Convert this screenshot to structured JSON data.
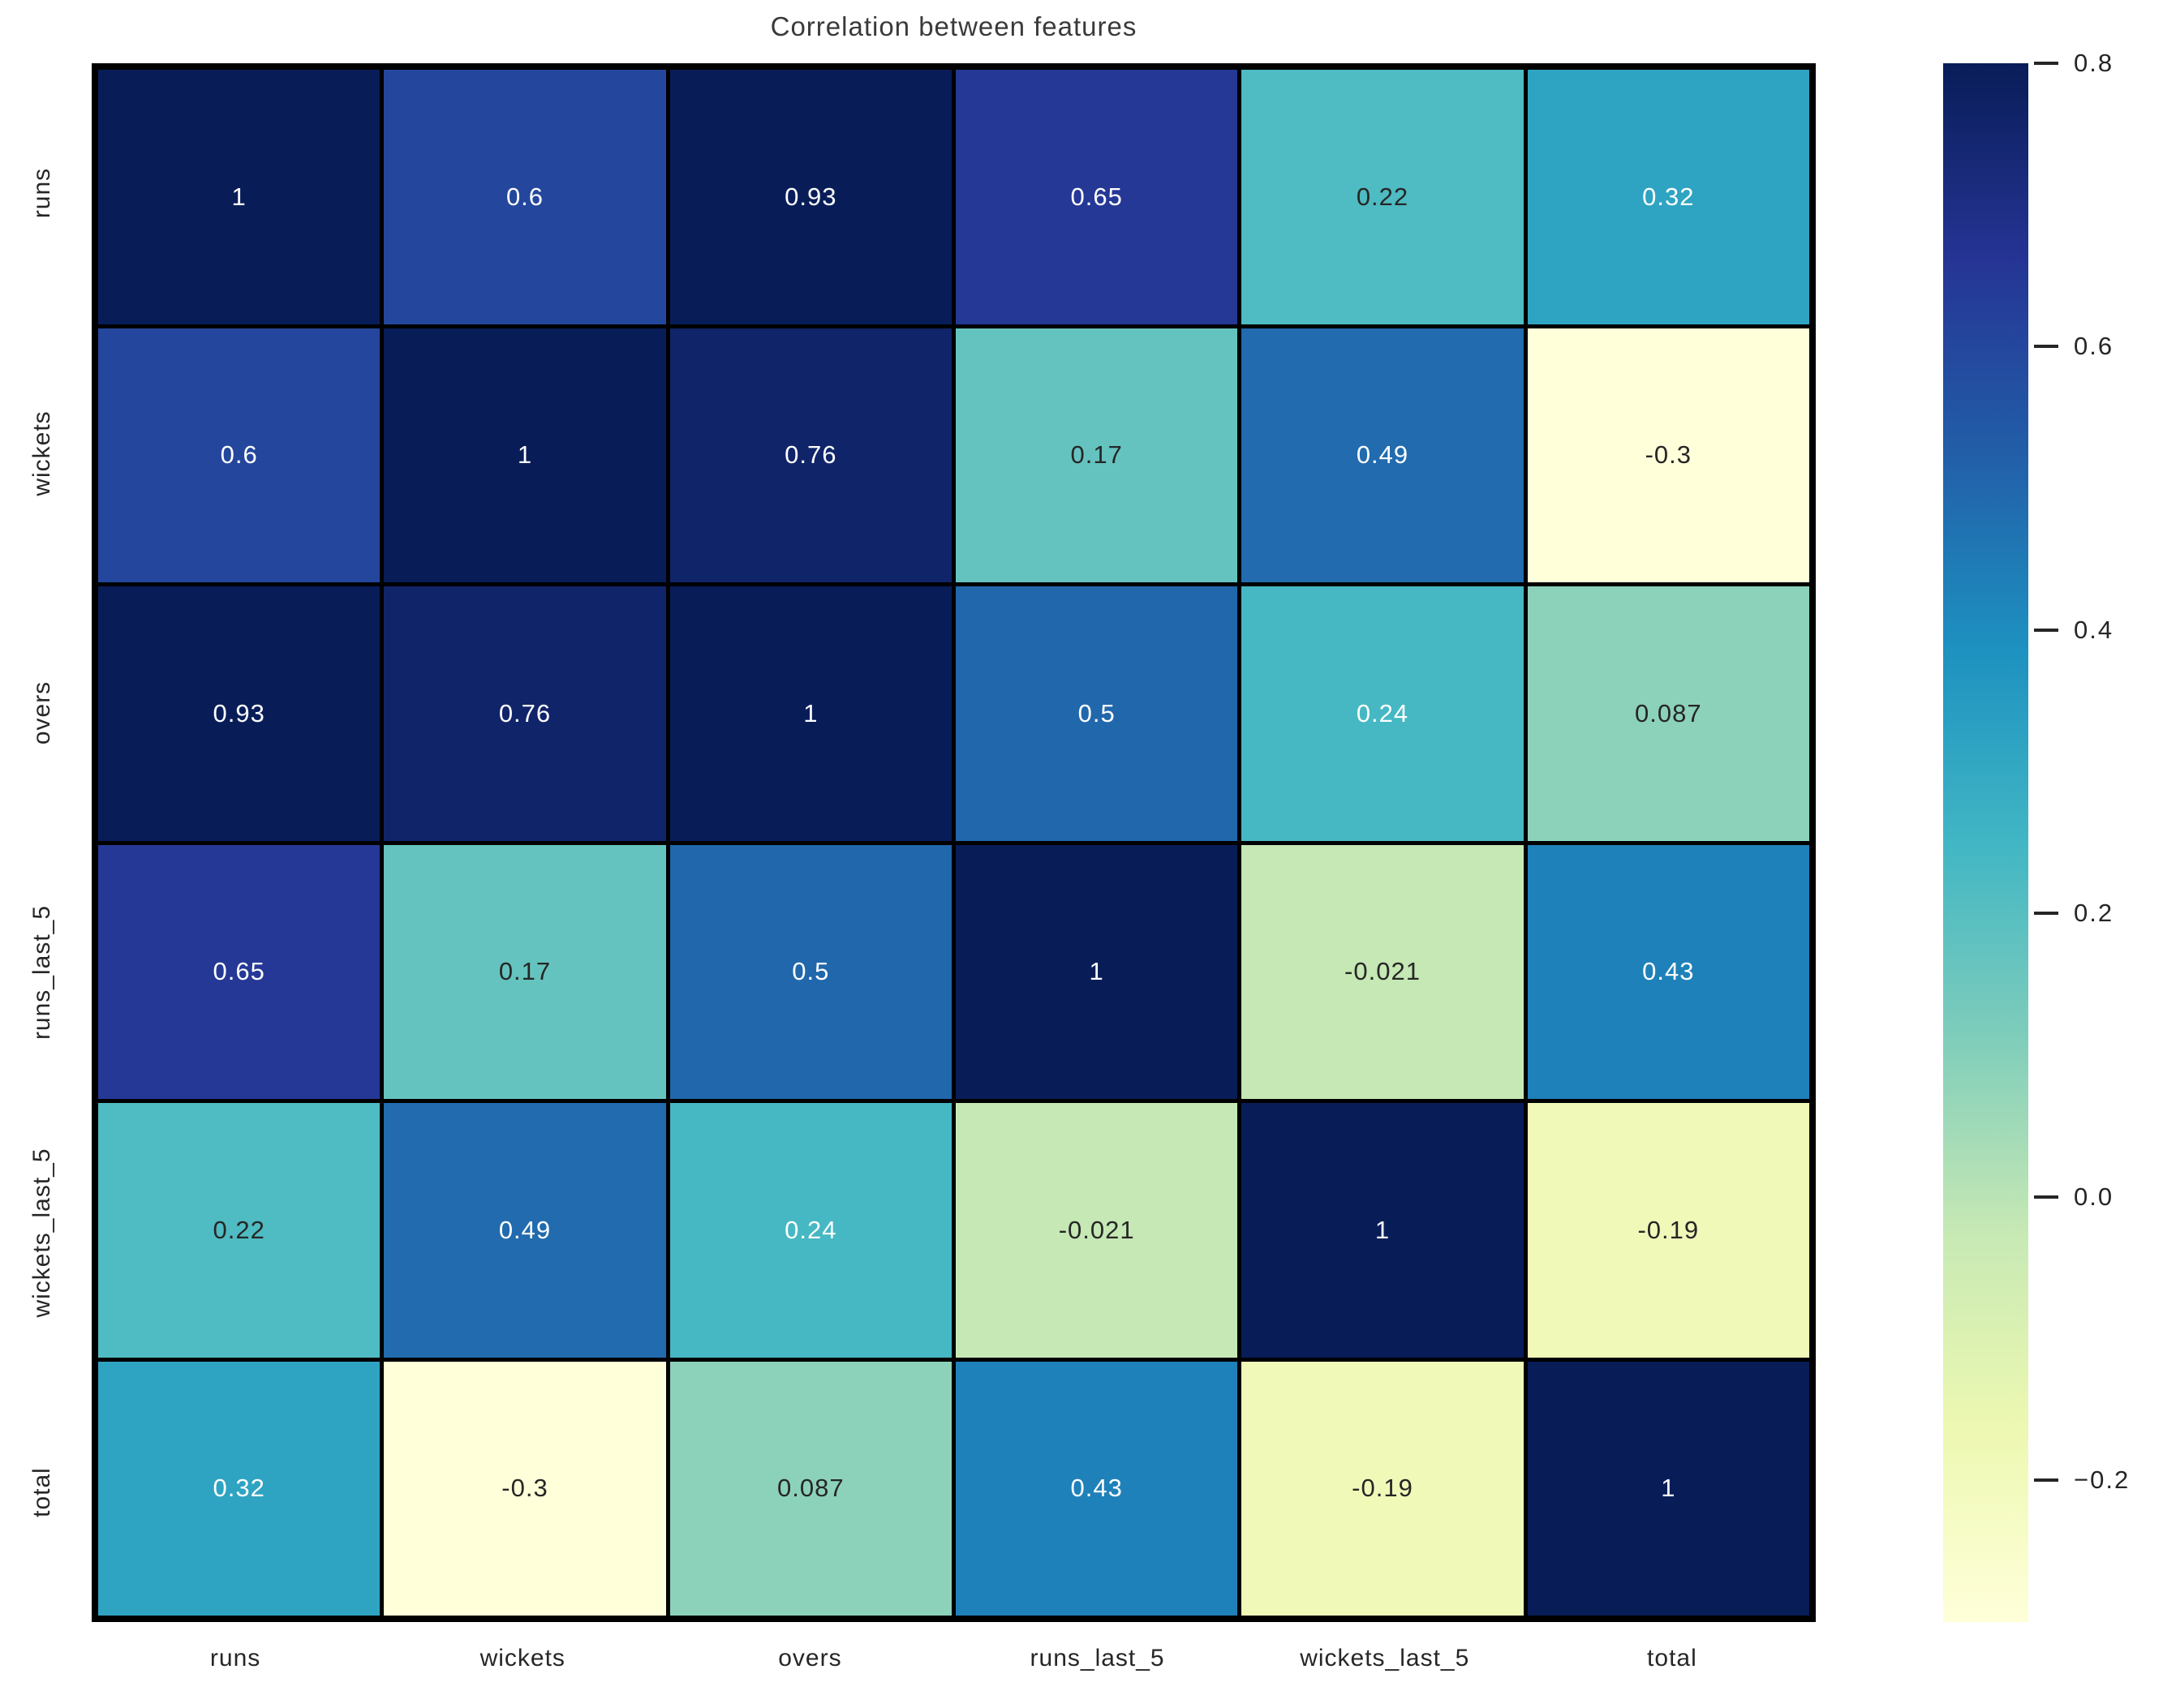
{
  "title": "Correlation between features",
  "chart_data": {
    "type": "heatmap",
    "title": "Correlation between features",
    "x_labels": [
      "runs",
      "wickets",
      "overs",
      "runs_last_5",
      "wickets_last_5",
      "total"
    ],
    "y_labels": [
      "runs",
      "wickets",
      "overs",
      "runs_last_5",
      "wickets_last_5",
      "total"
    ],
    "matrix": [
      [
        1,
        0.6,
        0.93,
        0.65,
        0.22,
        0.32
      ],
      [
        0.6,
        1,
        0.76,
        0.17,
        0.49,
        -0.3
      ],
      [
        0.93,
        0.76,
        1,
        0.5,
        0.24,
        0.087
      ],
      [
        0.65,
        0.17,
        0.5,
        1,
        -0.021,
        0.43
      ],
      [
        0.22,
        0.49,
        0.24,
        -0.021,
        1,
        -0.19
      ],
      [
        0.32,
        -0.3,
        0.087,
        0.43,
        -0.19,
        1
      ]
    ],
    "vmin": -0.3,
    "vmax": 0.8,
    "colormap": {
      "name": "YlGnBu",
      "anchors": [
        "#ffffd9",
        "#edf8b1",
        "#c7e9b4",
        "#7fcdbb",
        "#41b6c4",
        "#1d91c0",
        "#225ea8",
        "#253494",
        "#081d58"
      ]
    },
    "colorbar_tick_values": [
      0.8,
      0.6,
      0.4,
      0.2,
      0.0,
      -0.2
    ],
    "colorbar_tick_labels": [
      "0.8",
      "0.6",
      "0.4",
      "0.2",
      "0.0",
      "−0.2"
    ],
    "annotation_text_light": "#ffffff",
    "annotation_text_dark": "#262626",
    "grid_line_color": "#000000",
    "legend_position": "right",
    "grid": "off"
  }
}
